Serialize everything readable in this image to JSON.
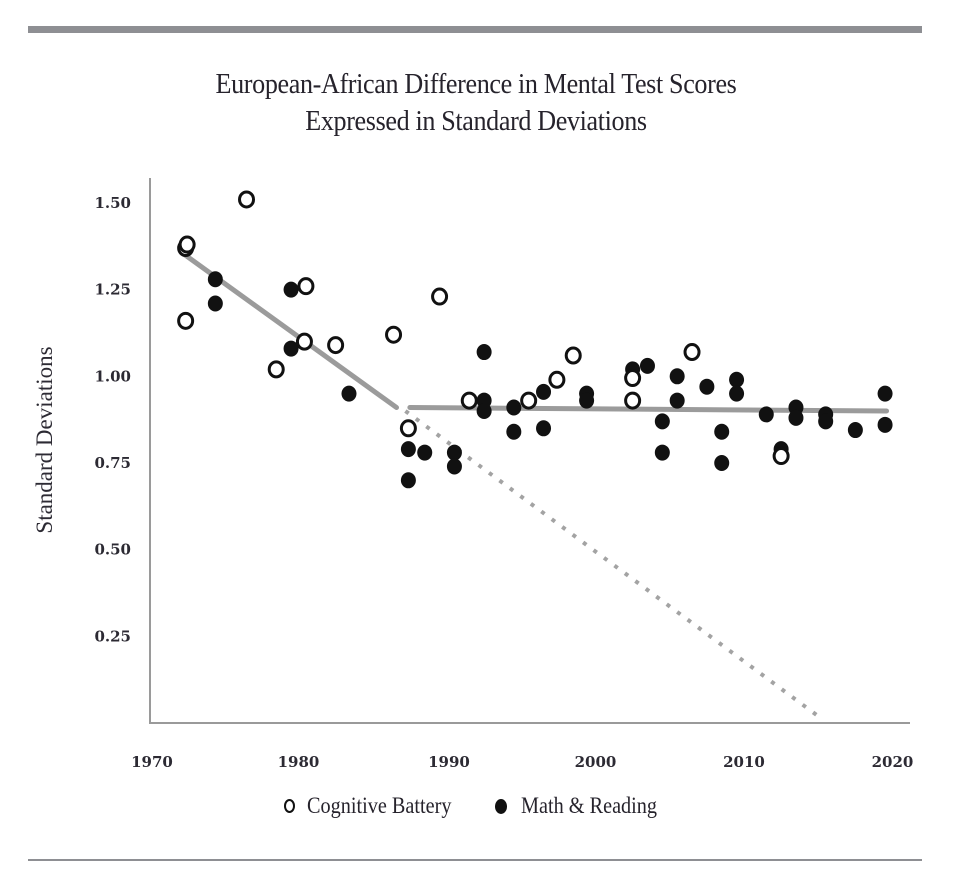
{
  "colors": {
    "rule": "#8e8f93",
    "axis": "#9a9a9a",
    "trend": "#9b9b9b",
    "marker": "#111111",
    "text": "#26232c"
  },
  "chart_data": {
    "type": "scatter",
    "title": "European-African Difference in Mental Test Scores",
    "subtitle": "Expressed in Standard Deviations",
    "xlabel": "",
    "ylabel": "Standard Deviations",
    "xlim": [
      1970,
      2021
    ],
    "ylim": [
      0,
      1.57
    ],
    "x_ticks": [
      1970,
      1980,
      1990,
      2000,
      2010,
      2020
    ],
    "x_tick_labels": [
      "1970",
      "1980",
      "1990",
      "2000",
      "2010",
      "2020"
    ],
    "y_ticks": [
      0.25,
      0.5,
      0.75,
      1.0,
      1.25,
      1.5
    ],
    "y_tick_labels": [
      "0.25",
      "0.50",
      "0.75",
      "1.00",
      "1.25",
      "1.50"
    ],
    "grid": false,
    "legend_position": "bottom-center",
    "series": [
      {
        "name": "Cognitive Battery",
        "marker": "open-circle",
        "points": [
          [
            1972.4,
            1.37
          ],
          [
            1972.5,
            1.38
          ],
          [
            1976.5,
            1.51
          ],
          [
            1972.4,
            1.16
          ],
          [
            1980.5,
            1.26
          ],
          [
            1980.4,
            1.1
          ],
          [
            1982.5,
            1.09
          ],
          [
            1978.5,
            1.02
          ],
          [
            1986.4,
            1.12
          ],
          [
            1989.5,
            1.23
          ],
          [
            1987.4,
            0.85
          ],
          [
            1991.5,
            0.93
          ],
          [
            1995.5,
            0.93
          ],
          [
            1997.4,
            0.99
          ],
          [
            1998.5,
            1.06
          ],
          [
            2002.5,
            0.995
          ],
          [
            2002.5,
            0.93
          ],
          [
            2006.5,
            1.07
          ],
          [
            2012.5,
            0.77
          ]
        ]
      },
      {
        "name": "Math & Reading",
        "marker": "filled-circle",
        "points": [
          [
            1974.4,
            1.28
          ],
          [
            1974.4,
            1.21
          ],
          [
            1979.5,
            1.25
          ],
          [
            1979.5,
            1.08
          ],
          [
            1983.4,
            0.95
          ],
          [
            1987.4,
            0.79
          ],
          [
            1988.5,
            0.78
          ],
          [
            1987.4,
            0.7
          ],
          [
            1990.5,
            0.78
          ],
          [
            1990.5,
            0.74
          ],
          [
            1992.5,
            1.07
          ],
          [
            1992.5,
            0.93
          ],
          [
            1992.5,
            0.9
          ],
          [
            1994.5,
            0.91
          ],
          [
            1994.5,
            0.84
          ],
          [
            1996.5,
            0.955
          ],
          [
            1996.5,
            0.85
          ],
          [
            1999.4,
            0.95
          ],
          [
            1999.4,
            0.93
          ],
          [
            2002.5,
            1.02
          ],
          [
            2003.5,
            1.03
          ],
          [
            2005.5,
            1.0
          ],
          [
            2005.5,
            0.93
          ],
          [
            2004.5,
            0.87
          ],
          [
            2004.5,
            0.78
          ],
          [
            2007.5,
            0.97
          ],
          [
            2009.5,
            0.99
          ],
          [
            2009.5,
            0.95
          ],
          [
            2008.5,
            0.84
          ],
          [
            2008.5,
            0.75
          ],
          [
            2011.5,
            0.89
          ],
          [
            2012.5,
            0.79
          ],
          [
            2013.5,
            0.91
          ],
          [
            2013.5,
            0.88
          ],
          [
            2015.5,
            0.89
          ],
          [
            2015.5,
            0.87
          ],
          [
            2017.5,
            0.845
          ],
          [
            2019.5,
            0.95
          ],
          [
            2019.5,
            0.86
          ]
        ]
      }
    ],
    "lines": [
      {
        "name": "trend-pre-1987",
        "style": "solid",
        "points": [
          [
            1972.2,
            1.355
          ],
          [
            1986.6,
            0.91
          ]
        ]
      },
      {
        "name": "trend-post-1987",
        "style": "solid",
        "points": [
          [
            1987.5,
            0.91
          ],
          [
            2019.6,
            0.9
          ]
        ]
      },
      {
        "name": "projected-trend",
        "style": "dotted",
        "points": [
          [
            1987.2,
            0.9
          ],
          [
            2015.3,
            0.01
          ]
        ]
      }
    ]
  },
  "legend": {
    "items": [
      {
        "label": "Cognitive Battery",
        "marker": "open-circle"
      },
      {
        "label": "Math & Reading",
        "marker": "filled-circle"
      }
    ]
  }
}
